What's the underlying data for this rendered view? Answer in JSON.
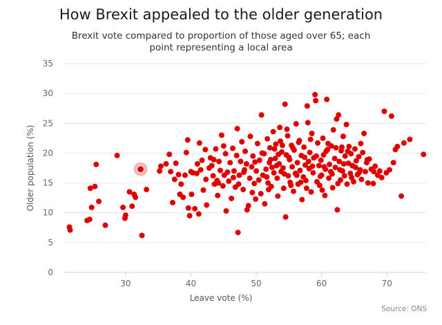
{
  "chart_data": {
    "type": "scatter",
    "title": "How Brexit appealed to the older generation",
    "subtitle": "Brexit vote compared to proportion of those aged over 65; each point representing a local area",
    "xlabel": "Leave vote (%)",
    "ylabel": "Older population (%)",
    "xlim": [
      20.5,
      76
    ],
    "ylim": [
      0,
      35
    ],
    "xticks": [
      30,
      40,
      50,
      60,
      70
    ],
    "yticks": [
      0,
      5,
      10,
      15,
      20,
      25,
      30,
      35
    ],
    "grid": "horizontal",
    "legend": "none",
    "source": "Source: ONS",
    "point_color": "#e00000",
    "highlight_color": "#f3b9b9",
    "highlighted_point": {
      "x": 32.3,
      "y": 17.3
    },
    "points": [
      [
        21.4,
        7.6
      ],
      [
        21.5,
        7.1
      ],
      [
        24.1,
        8.7
      ],
      [
        24.5,
        8.9
      ],
      [
        24.6,
        14.1
      ],
      [
        24.8,
        10.9
      ],
      [
        25.3,
        14.4
      ],
      [
        25.5,
        18.1
      ],
      [
        25.9,
        11.9
      ],
      [
        26.9,
        7.9
      ],
      [
        28.7,
        19.6
      ],
      [
        29.6,
        10.9
      ],
      [
        29.9,
        9.1
      ],
      [
        30.0,
        9.6
      ],
      [
        30.6,
        13.5
      ],
      [
        31.0,
        11.1
      ],
      [
        31.3,
        13.1
      ],
      [
        31.5,
        12.6
      ],
      [
        32.5,
        6.2
      ],
      [
        33.2,
        13.9
      ],
      [
        35.2,
        17.0
      ],
      [
        35.4,
        17.8
      ],
      [
        36.2,
        18.2
      ],
      [
        36.7,
        19.8
      ],
      [
        36.9,
        16.9
      ],
      [
        37.2,
        11.7
      ],
      [
        37.5,
        15.6
      ],
      [
        37.7,
        18.3
      ],
      [
        38.1,
        16.4
      ],
      [
        38.3,
        13.1
      ],
      [
        38.5,
        14.8
      ],
      [
        38.8,
        12.6
      ],
      [
        39.1,
        16.3
      ],
      [
        39.3,
        20.1
      ],
      [
        39.5,
        22.2
      ],
      [
        39.6,
        10.8
      ],
      [
        39.8,
        9.5
      ],
      [
        40.0,
        16.9
      ],
      [
        40.1,
        13.1
      ],
      [
        40.3,
        16.7
      ],
      [
        40.6,
        10.7
      ],
      [
        40.9,
        16.6
      ],
      [
        41.2,
        9.8
      ],
      [
        41.3,
        21.7
      ],
      [
        41.5,
        17.2
      ],
      [
        41.7,
        18.8
      ],
      [
        41.9,
        13.8
      ],
      [
        42.2,
        20.6
      ],
      [
        42.3,
        15.6
      ],
      [
        42.4,
        11.3
      ],
      [
        42.8,
        17.5
      ],
      [
        43.0,
        19.2
      ],
      [
        43.2,
        17.9
      ],
      [
        43.4,
        16.2
      ],
      [
        43.6,
        14.8
      ],
      [
        43.8,
        20.7
      ],
      [
        44.0,
        15.4
      ],
      [
        44.1,
        12.9
      ],
      [
        44.3,
        18.6
      ],
      [
        44.5,
        17.1
      ],
      [
        44.7,
        23.0
      ],
      [
        44.9,
        14.5
      ],
      [
        45.1,
        16.3
      ],
      [
        45.3,
        19.9
      ],
      [
        45.4,
        10.3
      ],
      [
        45.6,
        16.8
      ],
      [
        45.8,
        15.3
      ],
      [
        46.0,
        18.4
      ],
      [
        46.2,
        12.4
      ],
      [
        46.4,
        20.8
      ],
      [
        46.6,
        17.0
      ],
      [
        46.8,
        14.3
      ],
      [
        47.0,
        19.6
      ],
      [
        47.1,
        24.1
      ],
      [
        47.2,
        6.7
      ],
      [
        47.4,
        16.3
      ],
      [
        47.6,
        18.6
      ],
      [
        47.8,
        21.9
      ],
      [
        48.0,
        13.9
      ],
      [
        48.1,
        16.8
      ],
      [
        48.3,
        20.3
      ],
      [
        48.5,
        18.2
      ],
      [
        48.6,
        10.5
      ],
      [
        48.8,
        11.2
      ],
      [
        49.0,
        15.8
      ],
      [
        49.1,
        22.8
      ],
      [
        49.3,
        17.7
      ],
      [
        49.5,
        19.5
      ],
      [
        49.7,
        14.9
      ],
      [
        49.9,
        12.3
      ],
      [
        50.0,
        17.0
      ],
      [
        50.2,
        21.6
      ],
      [
        50.4,
        15.5
      ],
      [
        50.5,
        18.8
      ],
      [
        50.7,
        13.2
      ],
      [
        50.8,
        26.4
      ],
      [
        51.0,
        16.3
      ],
      [
        51.2,
        19.9
      ],
      [
        51.3,
        11.5
      ],
      [
        51.5,
        17.3
      ],
      [
        51.7,
        22.4
      ],
      [
        51.8,
        15.0
      ],
      [
        52.0,
        18.4
      ],
      [
        52.1,
        20.9
      ],
      [
        52.3,
        14.4
      ],
      [
        52.4,
        17.6
      ],
      [
        52.6,
        23.6
      ],
      [
        52.7,
        16.7
      ],
      [
        52.9,
        19.1
      ],
      [
        53.0,
        21.5
      ],
      [
        53.2,
        15.8
      ],
      [
        53.3,
        12.8
      ],
      [
        53.5,
        18.2
      ],
      [
        53.6,
        24.3
      ],
      [
        53.8,
        16.9
      ],
      [
        53.9,
        20.2
      ],
      [
        54.1,
        17.5
      ],
      [
        54.2,
        14.1
      ],
      [
        54.4,
        28.2
      ],
      [
        54.5,
        9.3
      ],
      [
        54.6,
        19.7
      ],
      [
        54.8,
        22.9
      ],
      [
        54.9,
        16.2
      ],
      [
        55.1,
        18.9
      ],
      [
        55.2,
        15.1
      ],
      [
        55.4,
        21.3
      ],
      [
        55.5,
        17.7
      ],
      [
        55.7,
        13.6
      ],
      [
        55.8,
        20.5
      ],
      [
        56.0,
        16.6
      ],
      [
        56.1,
        24.9
      ],
      [
        56.3,
        18.4
      ],
      [
        56.4,
        14.8
      ],
      [
        56.6,
        22.1
      ],
      [
        56.7,
        17.1
      ],
      [
        56.9,
        19.6
      ],
      [
        57.0,
        12.2
      ],
      [
        57.2,
        16.0
      ],
      [
        57.3,
        21.0
      ],
      [
        57.5,
        18.0
      ],
      [
        57.6,
        15.4
      ],
      [
        57.8,
        27.9
      ],
      [
        57.9,
        25.1
      ],
      [
        58.1,
        17.4
      ],
      [
        58.2,
        20.1
      ],
      [
        58.4,
        13.5
      ],
      [
        58.5,
        23.3
      ],
      [
        58.7,
        16.7
      ],
      [
        58.8,
        19.2
      ],
      [
        59.0,
        29.8
      ],
      [
        59.1,
        28.8
      ],
      [
        59.3,
        15.2
      ],
      [
        59.4,
        21.7
      ],
      [
        59.6,
        17.9
      ],
      [
        59.7,
        14.6
      ],
      [
        59.9,
        18.8
      ],
      [
        60.0,
        16.3
      ],
      [
        60.2,
        22.5
      ],
      [
        60.3,
        19.7
      ],
      [
        60.5,
        12.9
      ],
      [
        60.6,
        17.3
      ],
      [
        60.8,
        29.0
      ],
      [
        60.9,
        20.6
      ],
      [
        61.1,
        15.8
      ],
      [
        61.2,
        18.1
      ],
      [
        61.4,
        16.9
      ],
      [
        61.5,
        21.2
      ],
      [
        61.7,
        14.2
      ],
      [
        61.8,
        23.9
      ],
      [
        62.0,
        19.1
      ],
      [
        62.1,
        17.6
      ],
      [
        62.3,
        25.7
      ],
      [
        62.4,
        10.5
      ],
      [
        62.6,
        26.4
      ],
      [
        62.7,
        18.6
      ],
      [
        62.9,
        15.5
      ],
      [
        63.0,
        20.4
      ],
      [
        63.2,
        17.0
      ],
      [
        63.3,
        22.8
      ],
      [
        63.5,
        16.2
      ],
      [
        63.6,
        19.5
      ],
      [
        63.8,
        24.8
      ],
      [
        63.9,
        14.8
      ],
      [
        64.1,
        18.3
      ],
      [
        64.2,
        21.1
      ],
      [
        64.4,
        16.6
      ],
      [
        64.5,
        19.9
      ],
      [
        64.7,
        17.9
      ],
      [
        64.9,
        15.2
      ],
      [
        65.1,
        20.7
      ],
      [
        65.3,
        18.7
      ],
      [
        65.5,
        16.4
      ],
      [
        65.7,
        19.4
      ],
      [
        65.9,
        17.2
      ],
      [
        66.1,
        15.6
      ],
      [
        66.3,
        20.1
      ],
      [
        66.5,
        23.3
      ],
      [
        66.7,
        16.9
      ],
      [
        66.9,
        18.4
      ],
      [
        67.1,
        15.0
      ],
      [
        67.3,
        19.0
      ],
      [
        67.6,
        17.3
      ],
      [
        67.9,
        14.9
      ],
      [
        68.2,
        17.8
      ],
      [
        68.6,
        16.3
      ],
      [
        68.9,
        17.0
      ],
      [
        69.2,
        15.9
      ],
      [
        69.6,
        27.0
      ],
      [
        69.9,
        16.7
      ],
      [
        70.4,
        17.2
      ],
      [
        70.7,
        26.2
      ],
      [
        71.0,
        18.4
      ],
      [
        71.3,
        20.6
      ],
      [
        71.6,
        21.1
      ],
      [
        72.2,
        12.8
      ],
      [
        72.6,
        21.7
      ],
      [
        73.5,
        22.3
      ],
      [
        75.6,
        19.8
      ],
      [
        41.0,
        18.2
      ],
      [
        43.5,
        18.9
      ],
      [
        45.0,
        21.2
      ],
      [
        46.5,
        15.9
      ],
      [
        48.2,
        17.2
      ],
      [
        49.8,
        18.5
      ],
      [
        50.9,
        20.0
      ],
      [
        51.6,
        16.0
      ],
      [
        52.2,
        18.9
      ],
      [
        53.1,
        17.9
      ],
      [
        53.7,
        22.0
      ],
      [
        54.3,
        16.5
      ],
      [
        55.0,
        19.3
      ],
      [
        55.6,
        20.9
      ],
      [
        56.2,
        16.3
      ],
      [
        56.8,
        15.1
      ],
      [
        57.4,
        19.3
      ],
      [
        58.0,
        18.6
      ],
      [
        58.6,
        17.8
      ],
      [
        59.2,
        19.5
      ],
      [
        59.8,
        16.1
      ],
      [
        60.4,
        17.7
      ],
      [
        61.0,
        21.6
      ],
      [
        61.6,
        16.5
      ],
      [
        62.2,
        20.9
      ],
      [
        62.8,
        17.2
      ],
      [
        63.4,
        18.2
      ],
      [
        64.0,
        20.3
      ],
      [
        64.6,
        15.9
      ],
      [
        65.2,
        17.6
      ],
      [
        66.0,
        21.6
      ],
      [
        67.0,
        18.9
      ],
      [
        68.0,
        16.9
      ],
      [
        44.2,
        15.0
      ],
      [
        47.3,
        14.8
      ],
      [
        49.4,
        13.4
      ],
      [
        51.9,
        13.9
      ],
      [
        55.3,
        14.6
      ],
      [
        57.7,
        14.1
      ],
      [
        60.1,
        13.8
      ],
      [
        62.5,
        14.9
      ],
      [
        65.8,
        16.8
      ],
      [
        53.4,
        19.8
      ],
      [
        54.7,
        24.0
      ],
      [
        56.5,
        21.8
      ],
      [
        58.3,
        22.3
      ],
      [
        60.7,
        20.3
      ],
      [
        63.1,
        21.0
      ],
      [
        52.8,
        20.7
      ],
      [
        54.0,
        21.3
      ]
    ]
  }
}
